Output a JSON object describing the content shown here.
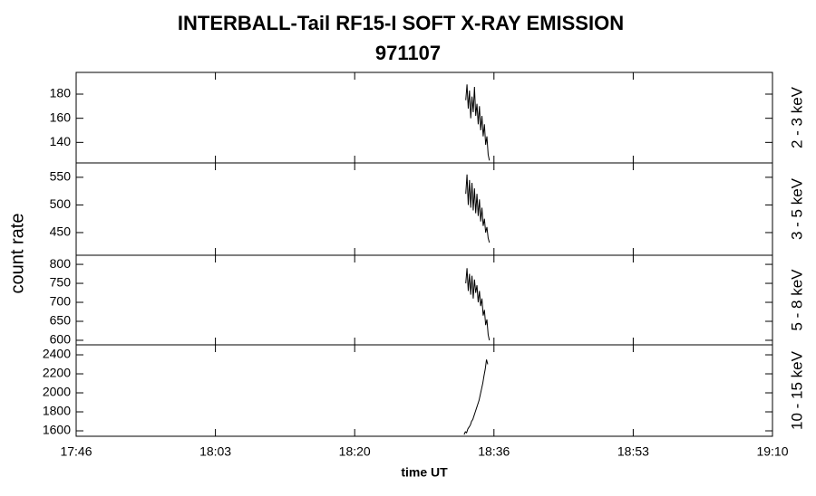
{
  "title": "INTERBALL-Tail RF15-I SOFT X-RAY EMISSION",
  "subtitle": "971107",
  "ylabel": "count rate",
  "xlabel": "time UT",
  "chart_data": [
    {
      "type": "line",
      "ylabel_right": "2 - 3 keV",
      "color": "#000000",
      "x": [
        1113.0,
        1113.15,
        1113.3,
        1113.45,
        1113.6,
        1113.75,
        1113.9,
        1114.05,
        1114.2,
        1114.35,
        1114.5,
        1114.65,
        1114.8,
        1114.95,
        1115.1,
        1115.25,
        1115.4,
        1115.55,
        1115.7,
        1115.85
      ],
      "values": [
        175,
        188,
        168,
        183,
        160,
        178,
        165,
        186,
        162,
        172,
        155,
        170,
        150,
        162,
        145,
        155,
        138,
        145,
        130,
        125
      ],
      "ylim": [
        123,
        198
      ],
      "yticks": [
        140,
        160,
        180
      ]
    },
    {
      "type": "line",
      "ylabel_right": "3 - 5 keV",
      "color": "#000000",
      "x": [
        1113.0,
        1113.15,
        1113.3,
        1113.45,
        1113.6,
        1113.75,
        1113.9,
        1114.05,
        1114.2,
        1114.35,
        1114.5,
        1114.65,
        1114.8,
        1114.95,
        1115.1,
        1115.25,
        1115.4,
        1115.55,
        1115.7,
        1115.85
      ],
      "values": [
        520,
        555,
        500,
        545,
        495,
        540,
        490,
        530,
        485,
        520,
        480,
        510,
        470,
        495,
        462,
        475,
        450,
        460,
        440,
        432
      ],
      "ylim": [
        409,
        576
      ],
      "yticks": [
        450,
        500,
        550
      ]
    },
    {
      "type": "line",
      "ylabel_right": "5 - 8 keV",
      "color": "#000000",
      "x": [
        1113.0,
        1113.15,
        1113.3,
        1113.45,
        1113.6,
        1113.75,
        1113.9,
        1114.05,
        1114.2,
        1114.35,
        1114.5,
        1114.65,
        1114.8,
        1114.95,
        1115.1,
        1115.25,
        1115.4,
        1115.55,
        1115.7,
        1115.85
      ],
      "values": [
        750,
        790,
        730,
        775,
        720,
        770,
        710,
        760,
        725,
        745,
        700,
        730,
        690,
        710,
        665,
        680,
        640,
        655,
        615,
        600
      ],
      "ylim": [
        588,
        824
      ],
      "yticks": [
        600,
        650,
        700,
        750,
        800
      ]
    },
    {
      "type": "line",
      "ylabel_right": "10 - 15 keV",
      "color": "#000000",
      "x": [
        1112.8,
        1112.95,
        1113.1,
        1113.25,
        1113.4,
        1113.55,
        1113.7,
        1113.85,
        1114.0,
        1114.15,
        1114.3,
        1114.45,
        1114.6,
        1114.75,
        1114.9,
        1115.05,
        1115.2,
        1115.35,
        1115.5,
        1115.65
      ],
      "values": [
        1560,
        1590,
        1580,
        1620,
        1640,
        1660,
        1700,
        1720,
        1760,
        1800,
        1840,
        1880,
        1920,
        1980,
        2040,
        2100,
        2180,
        2250,
        2350,
        2300
      ],
      "ylim": [
        1543,
        2505
      ],
      "yticks": [
        1600,
        1800,
        2000,
        2200,
        2400
      ],
      "xlim": [
        1066,
        1150
      ],
      "xticks": [
        {
          "value": 1066,
          "label": "17:46"
        },
        {
          "value": 1082.8,
          "label": "18:03"
        },
        {
          "value": 1099.6,
          "label": "18:20"
        },
        {
          "value": 1116.4,
          "label": "18:36"
        },
        {
          "value": 1133.2,
          "label": "18:53"
        },
        {
          "value": 1150,
          "label": "19:10"
        }
      ]
    }
  ]
}
